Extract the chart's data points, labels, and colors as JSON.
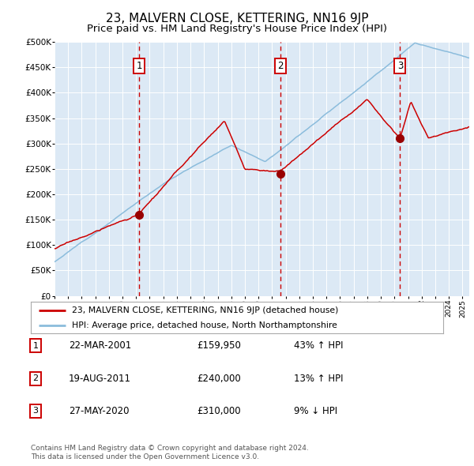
{
  "title": "23, MALVERN CLOSE, KETTERING, NN16 9JP",
  "subtitle": "Price paid vs. HM Land Registry's House Price Index (HPI)",
  "title_fontsize": 11,
  "subtitle_fontsize": 9.5,
  "background_color": "#ffffff",
  "plot_bg_color": "#dce9f5",
  "grid_color": "#ffffff",
  "red_line_color": "#cc0000",
  "blue_line_color": "#8bbcdc",
  "sale_marker_color": "#990000",
  "dashed_line_color": "#cc0000",
  "ylim": [
    0,
    500000
  ],
  "yticks": [
    0,
    50000,
    100000,
    150000,
    200000,
    250000,
    300000,
    350000,
    400000,
    450000,
    500000
  ],
  "sales": [
    {
      "label": "1",
      "year": 2001.22,
      "price": 159950,
      "date": "22-MAR-2001",
      "pct": "43%",
      "dir": "↑"
    },
    {
      "label": "2",
      "year": 2011.63,
      "price": 240000,
      "date": "19-AUG-2011",
      "pct": "13%",
      "dir": "↑"
    },
    {
      "label": "3",
      "year": 2020.41,
      "price": 310000,
      "date": "27-MAY-2020",
      "pct": "9%",
      "dir": "↓"
    }
  ],
  "legend_line1": "23, MALVERN CLOSE, KETTERING, NN16 9JP (detached house)",
  "legend_line2": "HPI: Average price, detached house, North Northamptonshire",
  "footer1": "Contains HM Land Registry data © Crown copyright and database right 2024.",
  "footer2": "This data is licensed under the Open Government Licence v3.0.",
  "table_rows": [
    [
      "1",
      "22-MAR-2001",
      "£159,950",
      "43% ↑ HPI"
    ],
    [
      "2",
      "19-AUG-2011",
      "£240,000",
      "13% ↑ HPI"
    ],
    [
      "3",
      "27-MAY-2020",
      "£310,000",
      "9% ↓ HPI"
    ]
  ]
}
